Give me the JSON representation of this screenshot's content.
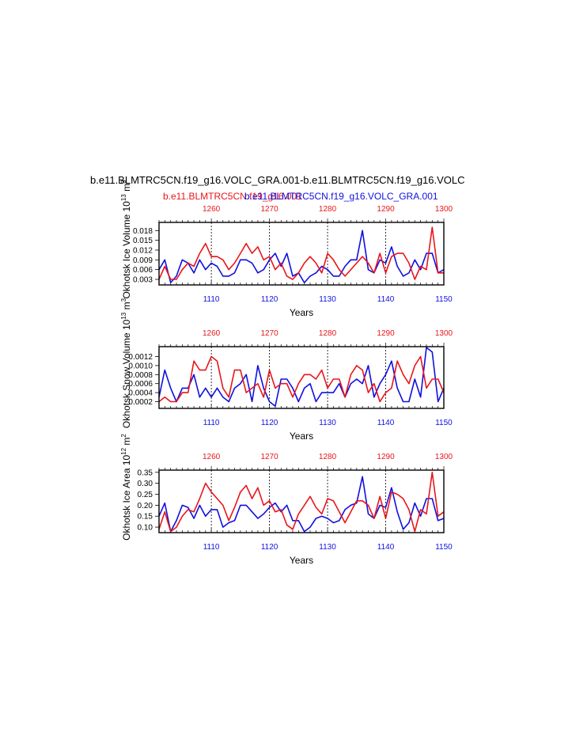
{
  "title": "b.e11.BLMTRC5CN.f19_g16.VOLC_GRA.001-b.e11.BLMTRC5CN.f19_g16.VOLC",
  "legend_red": "b.e11.BLMTRC5CN.f19_g16.001",
  "legend_blue": "b.e11.BLMTRC5CN.f19_g16.VOLC_GRA.001",
  "colors": {
    "red": "#e8161b",
    "blue": "#1010e0"
  },
  "chart_data": [
    {
      "type": "line",
      "ylabel": "Okhotsk Ice Volume 10^13 m^3",
      "xlabel": "Years",
      "xlim_bottom": [
        1101,
        1150
      ],
      "xlim_top": [
        1251,
        1300
      ],
      "ylim": [
        0.0013,
        0.0205
      ],
      "yticks": [
        "0.003",
        "0.006",
        "0.009",
        "0.012",
        "0.015",
        "0.018"
      ],
      "grid": "vertical dashed at 1110, 1120, 1130, 1140",
      "series": [
        {
          "name": "b.e11.BLMTRC5CN.f19_g16.VOLC_GRA.001",
          "color": "blue",
          "axis": "bottom",
          "values": [
            0.006,
            0.009,
            0.002,
            0.004,
            0.009,
            0.008,
            0.005,
            0.009,
            0.006,
            0.008,
            0.007,
            0.004,
            0.004,
            0.005,
            0.009,
            0.009,
            0.008,
            0.005,
            0.006,
            0.009,
            0.011,
            0.007,
            0.011,
            0.004,
            0.005,
            0.002,
            0.004,
            0.005,
            0.007,
            0.006,
            0.004,
            0.004,
            0.007,
            0.009,
            0.009,
            0.018,
            0.006,
            0.005,
            0.009,
            0.008,
            0.013,
            0.007,
            0.004,
            0.005,
            0.009,
            0.006,
            0.011,
            0.011,
            0.005,
            0.006
          ]
        },
        {
          "name": "b.e11.BLMTRC5CN.f19_g16.001",
          "color": "red",
          "axis": "top",
          "values": [
            0.003,
            0.007,
            0.003,
            0.003,
            0.006,
            0.008,
            0.007,
            0.011,
            0.014,
            0.01,
            0.01,
            0.009,
            0.006,
            0.008,
            0.011,
            0.014,
            0.011,
            0.013,
            0.009,
            0.01,
            0.006,
            0.008,
            0.004,
            0.003,
            0.005,
            0.008,
            0.01,
            0.008,
            0.005,
            0.011,
            0.009,
            0.006,
            0.004,
            0.006,
            0.008,
            0.01,
            0.008,
            0.005,
            0.011,
            0.005,
            0.01,
            0.011,
            0.011,
            0.008,
            0.003,
            0.007,
            0.006,
            0.019,
            0.005,
            0.005
          ]
        }
      ]
    },
    {
      "type": "line",
      "ylabel": "Okhotsk Snow Volume 10^13 m^3",
      "xlabel": "Years",
      "xlim_bottom": [
        1101,
        1150
      ],
      "xlim_top": [
        1251,
        1300
      ],
      "ylim": [
        5e-05,
        0.00142
      ],
      "yticks": [
        "0.0002",
        "0.0004",
        "0.0006",
        "0.0008",
        "0.0010",
        "0.0012"
      ],
      "grid": "vertical dashed at 1110, 1120, 1130, 1140",
      "series": [
        {
          "name": "b.e11.BLMTRC5CN.f19_g16.VOLC_GRA.001",
          "color": "blue",
          "axis": "bottom",
          "values": [
            0.0003,
            0.0009,
            0.0005,
            0.0002,
            0.0005,
            0.0005,
            0.0008,
            0.0003,
            0.0005,
            0.0003,
            0.0005,
            0.0003,
            0.0002,
            0.0005,
            0.0006,
            0.0008,
            0.0002,
            0.001,
            0.0005,
            0.0002,
            0.0001,
            0.0007,
            0.0007,
            0.0005,
            0.0002,
            0.0005,
            0.0006,
            0.0002,
            0.0004,
            0.0004,
            0.0004,
            0.0006,
            0.0003,
            0.0006,
            0.0007,
            0.0006,
            0.001,
            0.0003,
            0.0006,
            0.0008,
            0.0011,
            0.0005,
            0.0002,
            0.0002,
            0.0007,
            0.0003,
            0.0014,
            0.0013,
            0.0002,
            0.0005
          ]
        },
        {
          "name": "b.e11.BLMTRC5CN.f19_g16.001",
          "color": "red",
          "axis": "top",
          "values": [
            0.0002,
            0.0003,
            0.0002,
            0.0002,
            0.0004,
            0.0004,
            0.0011,
            0.0009,
            0.0009,
            0.0012,
            0.0011,
            0.0005,
            0.0003,
            0.0009,
            0.0009,
            0.0004,
            0.0005,
            0.0006,
            0.0003,
            0.0009,
            0.0005,
            0.0006,
            0.0006,
            0.0003,
            0.0006,
            0.0008,
            0.0008,
            0.0007,
            0.0009,
            0.0005,
            0.0007,
            0.0007,
            0.0003,
            0.0008,
            0.001,
            0.0009,
            0.0004,
            0.0006,
            0.0002,
            0.0004,
            0.0005,
            0.0011,
            0.0008,
            0.0006,
            0.001,
            0.0012,
            0.0005,
            0.0007,
            0.0007,
            0.0004
          ]
        }
      ]
    },
    {
      "type": "line",
      "ylabel": "Okhotsk Ice Area 10^12 m^2",
      "xlabel": "Years",
      "xlim_bottom": [
        1101,
        1150
      ],
      "xlim_top": [
        1251,
        1300
      ],
      "ylim": [
        0.075,
        0.36
      ],
      "yticks": [
        "0.10",
        "0.15",
        "0.20",
        "0.25",
        "0.30",
        "0.35"
      ],
      "grid": "vertical dashed at 1110, 1120, 1130, 1140",
      "series": [
        {
          "name": "b.e11.BLMTRC5CN.f19_g16.VOLC_GRA.001",
          "color": "blue",
          "axis": "bottom",
          "values": [
            0.15,
            0.21,
            0.08,
            0.13,
            0.2,
            0.19,
            0.14,
            0.2,
            0.15,
            0.18,
            0.18,
            0.1,
            0.12,
            0.13,
            0.2,
            0.2,
            0.17,
            0.14,
            0.16,
            0.19,
            0.21,
            0.17,
            0.2,
            0.13,
            0.13,
            0.08,
            0.1,
            0.14,
            0.15,
            0.14,
            0.12,
            0.13,
            0.18,
            0.2,
            0.21,
            0.33,
            0.16,
            0.14,
            0.2,
            0.19,
            0.28,
            0.17,
            0.09,
            0.12,
            0.21,
            0.15,
            0.23,
            0.23,
            0.13,
            0.14
          ]
        },
        {
          "name": "b.e11.BLMTRC5CN.f19_g16.001",
          "color": "red",
          "axis": "top",
          "values": [
            0.09,
            0.17,
            0.08,
            0.1,
            0.15,
            0.18,
            0.17,
            0.23,
            0.3,
            0.26,
            0.23,
            0.2,
            0.13,
            0.19,
            0.26,
            0.29,
            0.23,
            0.28,
            0.2,
            0.22,
            0.17,
            0.18,
            0.11,
            0.09,
            0.16,
            0.2,
            0.24,
            0.19,
            0.16,
            0.23,
            0.22,
            0.17,
            0.12,
            0.17,
            0.22,
            0.22,
            0.2,
            0.14,
            0.24,
            0.14,
            0.26,
            0.25,
            0.23,
            0.18,
            0.08,
            0.18,
            0.16,
            0.35,
            0.15,
            0.17
          ]
        }
      ]
    }
  ]
}
